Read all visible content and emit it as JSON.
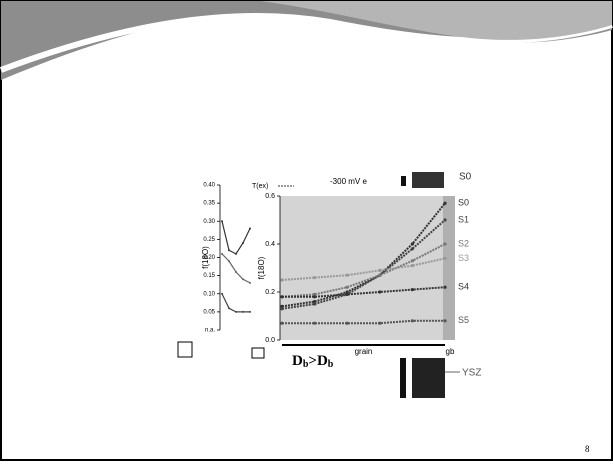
{
  "slide_number": "8",
  "annotations": [
    "-300 mV e",
    "S0",
    "YSZ",
    "D",
    "b",
    ">D",
    "b"
  ],
  "chart_data": [
    {
      "type": "line",
      "ylabel": "f(18O)",
      "categories": [
        null,
        null,
        null,
        null,
        null
      ],
      "ylim": [
        0,
        0.4
      ],
      "yticks": [
        {
          "value": 0,
          "label": "n.a."
        },
        0.05,
        {
          "value": 0.1,
          "label": "0.10"
        },
        0.15,
        {
          "value": 0.2,
          "label": "0.20"
        },
        0.25,
        {
          "value": 0.3,
          "label": "0.30"
        },
        0.35,
        {
          "value": 0.4,
          "label": "0.40"
        }
      ],
      "series": [
        {
          "name": "T(ex)",
          "color": "#333333",
          "values": [
            0.3,
            0.22,
            0.21,
            0.24,
            0.28
          ]
        },
        {
          "color": "#666666",
          "values": [
            0.21,
            0.19,
            0.16,
            0.14,
            0.13
          ]
        },
        {
          "color": "#444444",
          "values": [
            0.1,
            0.06,
            0.05,
            0.05,
            0.05
          ]
        }
      ]
    },
    {
      "type": "line",
      "ylabel": "f(18O)",
      "xlabel": "grain",
      "x2label": "gb",
      "categories": [
        null,
        null,
        null,
        null,
        null,
        null
      ],
      "ylim": [
        0,
        0.6
      ],
      "yticks": [
        {
          "value": 0,
          "label": "0.0"
        },
        0.2,
        0.4,
        0.6
      ],
      "series": [
        {
          "name": "S0",
          "color": "#333333",
          "values": [
            0.14,
            0.16,
            0.2,
            0.27,
            0.4,
            0.57
          ]
        },
        {
          "name": "S1",
          "color": "#444444",
          "values": [
            0.13,
            0.15,
            0.19,
            0.27,
            0.38,
            0.5
          ]
        },
        {
          "name": "S2",
          "color": "#777777",
          "values": [
            0.18,
            0.19,
            0.22,
            0.27,
            0.33,
            0.4
          ]
        },
        {
          "name": "S3",
          "color": "#999999",
          "values": [
            0.25,
            0.26,
            0.27,
            0.29,
            0.31,
            0.34
          ]
        },
        {
          "name": "S4",
          "color": "#333333",
          "values": [
            0.18,
            0.18,
            0.19,
            0.2,
            0.21,
            0.22
          ]
        },
        {
          "name": "S5",
          "color": "#555555",
          "values": [
            0.07,
            0.07,
            0.07,
            0.07,
            0.08,
            0.08
          ]
        }
      ]
    }
  ]
}
